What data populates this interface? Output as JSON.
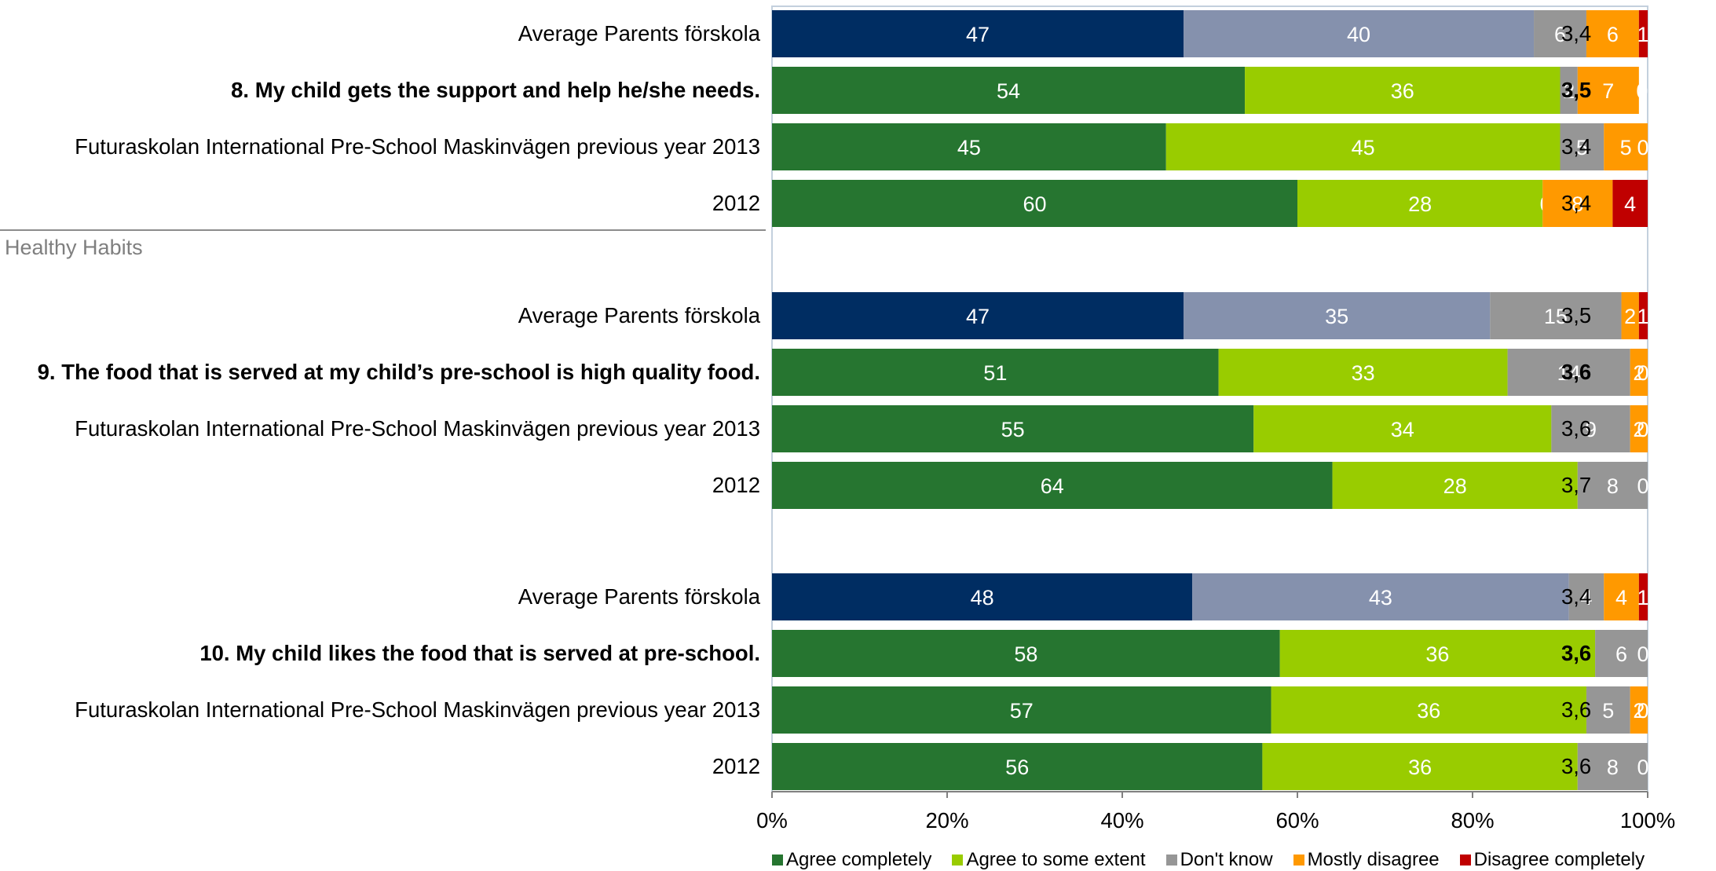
{
  "chart_data": {
    "type": "bar",
    "orientation": "horizontal",
    "stacked": true,
    "xlim": [
      0,
      100
    ],
    "xticks": [
      "0%",
      "20%",
      "40%",
      "60%",
      "80%",
      "100%"
    ],
    "legend_position": "bottom",
    "series": [
      {
        "name": "Agree completely",
        "color": "#267530"
      },
      {
        "name": "Agree to some extent",
        "color": "#99cc00"
      },
      {
        "name": "Don't know",
        "color": "#969696"
      },
      {
        "name": "Mostly disagree",
        "color": "#ff9900"
      },
      {
        "name": "Disagree completely",
        "color": "#c00000"
      }
    ],
    "average_colors": [
      "#002d62",
      "#8591ad",
      "#969696",
      "#ff9900",
      "#c00000"
    ],
    "rows": [
      {
        "label": "Average Parents förskola",
        "bold": false,
        "kind": "average",
        "values": [
          47,
          40,
          6,
          6,
          1
        ],
        "labels": [
          "47",
          "40",
          "6",
          "6",
          "1"
        ],
        "score": "3,4"
      },
      {
        "label": "8. My child gets the support and help he/she needs.",
        "bold": true,
        "kind": "school",
        "values": [
          54,
          36,
          2,
          7,
          0
        ],
        "labels": [
          "54",
          "36",
          "2",
          "7",
          "0"
        ],
        "score": "3,5"
      },
      {
        "label": "Futuraskolan International Pre-School Maskinvägen previous year 2013",
        "bold": false,
        "kind": "school",
        "values": [
          45,
          45,
          5,
          5,
          0
        ],
        "labels": [
          "45",
          "45",
          "5",
          "5",
          "0"
        ],
        "score": "3,4"
      },
      {
        "label": "2012",
        "bold": false,
        "kind": "school",
        "values": [
          60,
          28,
          0,
          8,
          4
        ],
        "labels": [
          "60",
          "28",
          "0",
          "8",
          "4"
        ],
        "score": "3,4"
      },
      {
        "label": "Average Parents förskola",
        "bold": false,
        "kind": "average",
        "values": [
          47,
          35,
          15,
          2,
          1
        ],
        "labels": [
          "47",
          "35",
          "15",
          "2",
          "1"
        ],
        "score": "3,5"
      },
      {
        "label": "9. The food that is served at my child’s pre-school is high quality food.",
        "bold": true,
        "kind": "school",
        "values": [
          51,
          33,
          14,
          2,
          0
        ],
        "labels": [
          "51",
          "33",
          "14",
          "2",
          "0"
        ],
        "score": "3,6"
      },
      {
        "label": "Futuraskolan International Pre-School Maskinvägen previous year 2013",
        "bold": false,
        "kind": "school",
        "values": [
          55,
          34,
          9,
          2,
          0
        ],
        "labels": [
          "55",
          "34",
          "9",
          "2",
          "0"
        ],
        "score": "3,6"
      },
      {
        "label": "2012",
        "bold": false,
        "kind": "school",
        "values": [
          64,
          28,
          8,
          0,
          0
        ],
        "labels": [
          "64",
          "28",
          "8",
          "0",
          ""
        ],
        "score": "3,7"
      },
      {
        "label": "Average Parents förskola",
        "bold": false,
        "kind": "average",
        "values": [
          48,
          43,
          4,
          4,
          1
        ],
        "labels": [
          "48",
          "43",
          "4",
          "4",
          "1"
        ],
        "score": "3,4"
      },
      {
        "label": "10. My child likes the food that is served at pre-school.",
        "bold": true,
        "kind": "school",
        "values": [
          58,
          36,
          6,
          0,
          0
        ],
        "labels": [
          "58",
          "36",
          "6",
          "0",
          ""
        ],
        "score": "3,6"
      },
      {
        "label": "Futuraskolan International Pre-School Maskinvägen previous year 2013",
        "bold": false,
        "kind": "school",
        "values": [
          57,
          36,
          5,
          2,
          0
        ],
        "labels": [
          "57",
          "36",
          "5",
          "2",
          "0"
        ],
        "score": "3,6"
      },
      {
        "label": "2012",
        "bold": false,
        "kind": "school",
        "values": [
          56,
          36,
          8,
          0,
          0
        ],
        "labels": [
          "56",
          "36",
          "8",
          "0",
          ""
        ],
        "score": "3,6"
      }
    ],
    "section_title": "Healthy Habits"
  }
}
